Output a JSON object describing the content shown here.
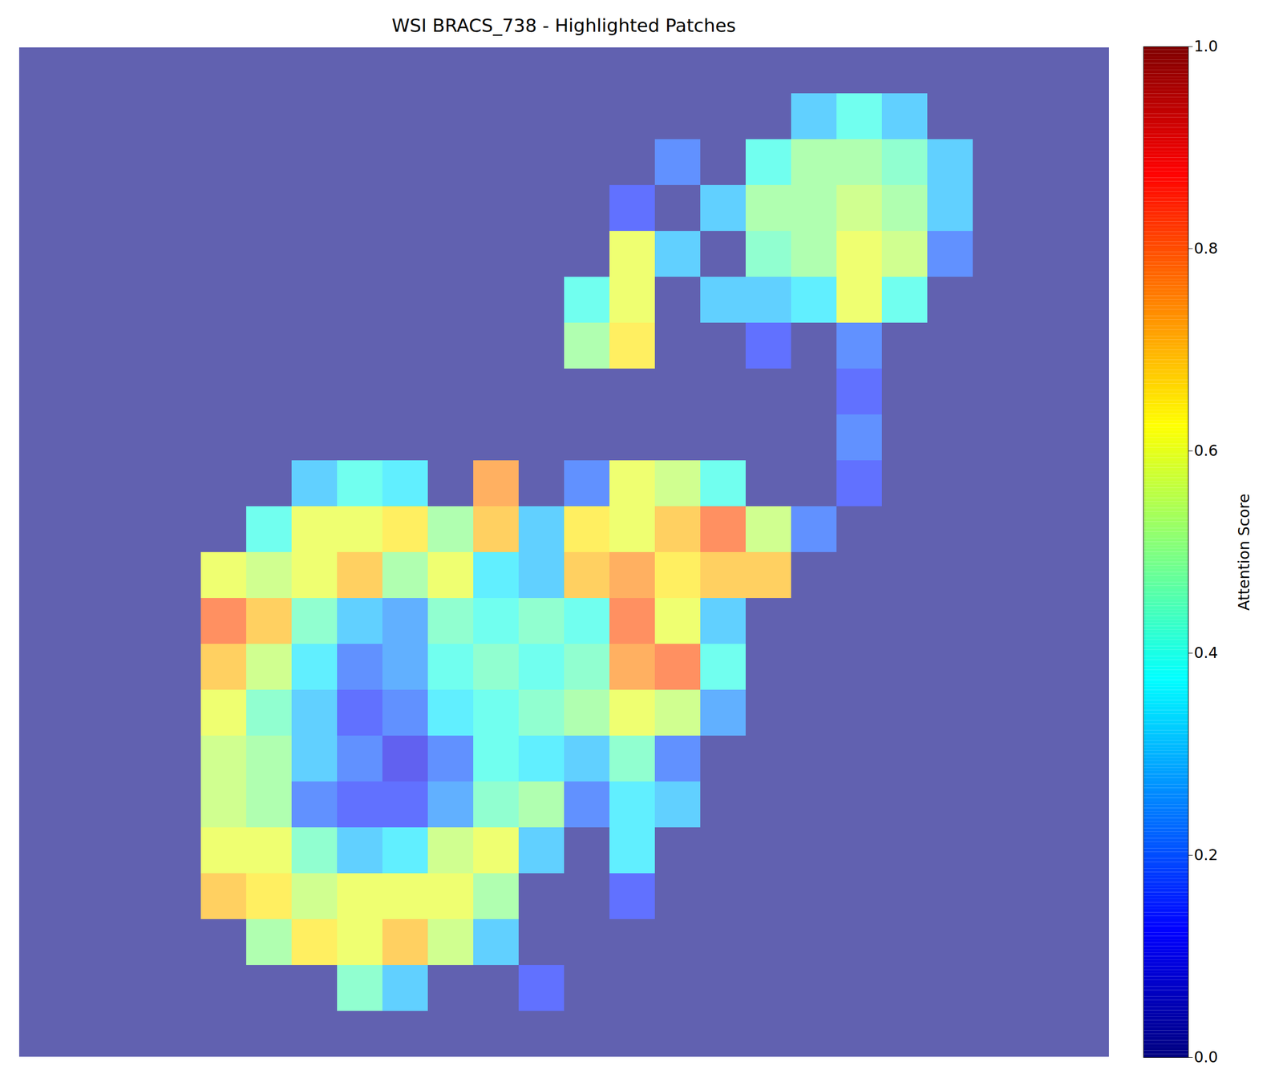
{
  "chart_data": {
    "type": "heatmap",
    "title": "WSI BRACS_738 - Highlighted Patches",
    "color": "jet",
    "tick_labels": false,
    "cells": [
      [
        0,
        0,
        0,
        0,
        0,
        0,
        0,
        0,
        0,
        0,
        0,
        0,
        0,
        0,
        0,
        0,
        0,
        0,
        0,
        0,
        0,
        0,
        0,
        0
      ],
      [
        0,
        0,
        0,
        0,
        0,
        0,
        0,
        0,
        0,
        0,
        0,
        0,
        0,
        0,
        0,
        0,
        0,
        0.3,
        0.4,
        0.3,
        0,
        0,
        0,
        0
      ],
      [
        0,
        0,
        0,
        0,
        0,
        0,
        0,
        0,
        0,
        0,
        0,
        0,
        0,
        0,
        0.2,
        0,
        0.4,
        0.5,
        0.5,
        0.45,
        0.3,
        0,
        0,
        0
      ],
      [
        0,
        0,
        0,
        0,
        0,
        0,
        0,
        0,
        0,
        0,
        0,
        0,
        0,
        0.15,
        0,
        0.3,
        0.5,
        0.5,
        0.55,
        0.5,
        0.3,
        0,
        0,
        0
      ],
      [
        0,
        0,
        0,
        0,
        0,
        0,
        0,
        0,
        0,
        0,
        0,
        0,
        0,
        0.6,
        0.3,
        0,
        0.45,
        0.5,
        0.6,
        0.55,
        0.2,
        0,
        0,
        0
      ],
      [
        0,
        0,
        0,
        0,
        0,
        0,
        0,
        0,
        0,
        0,
        0,
        0,
        0.4,
        0.6,
        0,
        0.3,
        0.3,
        0.35,
        0.6,
        0.4,
        0,
        0,
        0,
        0
      ],
      [
        0,
        0,
        0,
        0,
        0,
        0,
        0,
        0,
        0,
        0,
        0,
        0,
        0.5,
        0.65,
        0,
        0,
        0.15,
        0,
        0.2,
        0,
        0,
        0,
        0,
        0
      ],
      [
        0,
        0,
        0,
        0,
        0,
        0,
        0,
        0,
        0,
        0,
        0,
        0,
        0,
        0,
        0,
        0,
        0,
        0,
        0.15,
        0,
        0,
        0,
        0,
        0
      ],
      [
        0,
        0,
        0,
        0,
        0,
        0,
        0,
        0,
        0,
        0,
        0,
        0,
        0,
        0,
        0,
        0,
        0,
        0,
        0.2,
        0,
        0,
        0,
        0,
        0
      ],
      [
        0,
        0,
        0,
        0,
        0,
        0,
        0.3,
        0.4,
        0.35,
        0,
        0.75,
        0,
        0.2,
        0.6,
        0.55,
        0.4,
        0,
        0,
        0.15,
        0,
        0,
        0,
        0,
        0
      ],
      [
        0,
        0,
        0,
        0,
        0,
        0.4,
        0.6,
        0.6,
        0.65,
        0.5,
        0.7,
        0.3,
        0.65,
        0.6,
        0.7,
        0.8,
        0.55,
        0.2,
        0,
        0,
        0,
        0,
        0,
        0
      ],
      [
        0,
        0,
        0,
        0,
        0.6,
        0.55,
        0.6,
        0.7,
        0.5,
        0.6,
        0.35,
        0.3,
        0.7,
        0.75,
        0.65,
        0.7,
        0.7,
        0,
        0,
        0,
        0,
        0,
        0,
        0
      ],
      [
        0,
        0,
        0,
        0,
        0.8,
        0.7,
        0.45,
        0.3,
        0.25,
        0.45,
        0.4,
        0.45,
        0.4,
        0.8,
        0.6,
        0.3,
        0,
        0,
        0,
        0,
        0,
        0,
        0,
        0
      ],
      [
        0,
        0,
        0,
        0,
        0.7,
        0.55,
        0.35,
        0.2,
        0.25,
        0.4,
        0.45,
        0.4,
        0.45,
        0.75,
        0.8,
        0.4,
        0,
        0,
        0,
        0,
        0,
        0,
        0,
        0
      ],
      [
        0,
        0,
        0,
        0,
        0.6,
        0.45,
        0.3,
        0.15,
        0.2,
        0.35,
        0.4,
        0.45,
        0.5,
        0.6,
        0.55,
        0.25,
        0,
        0,
        0,
        0,
        0,
        0,
        0,
        0
      ],
      [
        0,
        0,
        0,
        0,
        0.55,
        0.5,
        0.3,
        0.2,
        0.1,
        0.2,
        0.4,
        0.35,
        0.3,
        0.45,
        0.2,
        0,
        0,
        0,
        0,
        0,
        0,
        0,
        0,
        0
      ],
      [
        0,
        0,
        0,
        0,
        0.55,
        0.5,
        0.2,
        0.15,
        0.15,
        0.25,
        0.45,
        0.5,
        0.2,
        0.35,
        0.3,
        0,
        0,
        0,
        0,
        0,
        0,
        0,
        0,
        0
      ],
      [
        0,
        0,
        0,
        0,
        0.6,
        0.6,
        0.45,
        0.3,
        0.35,
        0.55,
        0.6,
        0.3,
        0,
        0.35,
        0,
        0,
        0,
        0,
        0,
        0,
        0,
        0,
        0,
        0
      ],
      [
        0,
        0,
        0,
        0,
        0.7,
        0.65,
        0.55,
        0.6,
        0.6,
        0.6,
        0.5,
        0,
        0,
        0.15,
        0,
        0,
        0,
        0,
        0,
        0,
        0,
        0,
        0,
        0
      ],
      [
        0,
        0,
        0,
        0,
        0,
        0.5,
        0.65,
        0.6,
        0.7,
        0.55,
        0.3,
        0,
        0,
        0,
        0,
        0,
        0,
        0,
        0,
        0,
        0,
        0,
        0,
        0
      ],
      [
        0,
        0,
        0,
        0,
        0,
        0,
        0,
        0.45,
        0.3,
        0,
        0,
        0.15,
        0,
        0,
        0,
        0,
        0,
        0,
        0,
        0,
        0,
        0,
        0,
        0
      ],
      [
        0,
        0,
        0,
        0,
        0,
        0,
        0,
        0,
        0,
        0,
        0,
        0,
        0,
        0,
        0,
        0,
        0,
        0,
        0,
        0,
        0,
        0,
        0,
        0
      ]
    ],
    "colorbar": {
      "label": "Attention Score",
      "range": [
        0,
        1
      ],
      "ticks": [
        {
          "value": 0,
          "label": "0.0"
        },
        {
          "value": 0.2,
          "label": "0.2"
        },
        {
          "value": 0.4,
          "label": "0.4"
        },
        {
          "value": 0.6,
          "label": "0.6"
        },
        {
          "value": 0.8,
          "label": "0.8"
        },
        {
          "value": 1,
          "label": "1.0"
        }
      ]
    }
  }
}
